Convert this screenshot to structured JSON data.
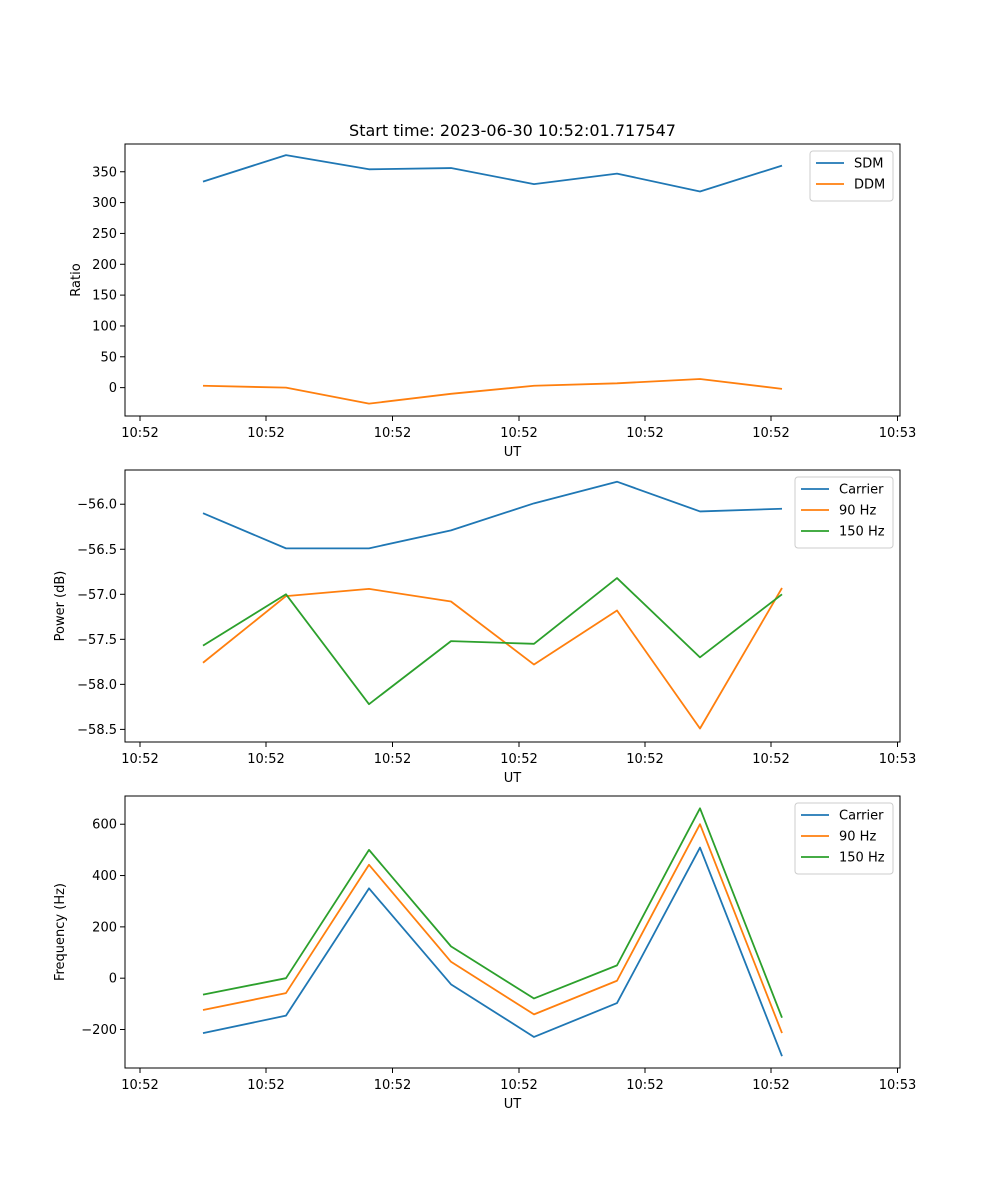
{
  "figure": {
    "title": "Start time: 2023-06-30 10:52:01.717547"
  },
  "chart_data": [
    {
      "type": "line",
      "title": "Start time: 2023-06-30 10:52:01.717547",
      "xlabel": "UT",
      "ylabel": "Ratio",
      "x_tick_labels": [
        "10:52",
        "10:52",
        "10:52",
        "10:52",
        "10:52",
        "10:52",
        "10:52",
        "10:53"
      ],
      "y_ticks": [
        0,
        50,
        100,
        150,
        200,
        250,
        300,
        350
      ],
      "y_tick_labels": [
        "0",
        "50",
        "100",
        "150",
        "200",
        "250",
        "300",
        "350"
      ],
      "ylim": [
        -46,
        395
      ],
      "grid": false,
      "legend_position": "top-right",
      "series": [
        {
          "name": "SDM",
          "color": "#1f77b4",
          "values": [
            334,
            377,
            354,
            356,
            330,
            347,
            318,
            360
          ]
        },
        {
          "name": "DDM",
          "color": "#ff7f0e",
          "values": [
            3,
            0,
            -26,
            -10,
            3,
            7,
            14,
            -2
          ]
        }
      ]
    },
    {
      "type": "line",
      "title": "",
      "xlabel": "UT",
      "ylabel": "Power (dB)",
      "x_tick_labels": [
        "10:52",
        "10:52",
        "10:52",
        "10:52",
        "10:52",
        "10:52",
        "10:52",
        "10:53"
      ],
      "y_ticks": [
        -58.5,
        -58.0,
        -57.5,
        -57.0,
        -56.5,
        -56.0
      ],
      "y_tick_labels": [
        "−58.5",
        "−58.0",
        "−57.5",
        "−57.0",
        "−56.5",
        "−56.0"
      ],
      "ylim": [
        -58.64,
        -55.62
      ],
      "grid": false,
      "legend_position": "top-right",
      "series": [
        {
          "name": "Carrier",
          "color": "#1f77b4",
          "values": [
            -56.1,
            -56.49,
            -56.49,
            -56.29,
            -55.99,
            -55.75,
            -56.08,
            -56.05
          ]
        },
        {
          "name": "90 Hz",
          "color": "#ff7f0e",
          "values": [
            -57.76,
            -57.02,
            -56.94,
            -57.08,
            -57.78,
            -57.18,
            -58.49,
            -56.93
          ]
        },
        {
          "name": "150 Hz",
          "color": "#2ca02c",
          "values": [
            -57.57,
            -57.0,
            -58.22,
            -57.52,
            -57.55,
            -56.82,
            -57.7,
            -57.0
          ]
        }
      ]
    },
    {
      "type": "line",
      "title": "",
      "xlabel": "UT",
      "ylabel": "Frequency (Hz)",
      "x_tick_labels": [
        "10:52",
        "10:52",
        "10:52",
        "10:52",
        "10:52",
        "10:52",
        "10:52",
        "10:53"
      ],
      "y_ticks": [
        -200,
        0,
        200,
        400,
        600
      ],
      "y_tick_labels": [
        "−200",
        "0",
        "200",
        "400",
        "600"
      ],
      "ylim": [
        -350,
        710
      ],
      "grid": false,
      "legend_position": "top-right",
      "series": [
        {
          "name": "Carrier",
          "color": "#1f77b4",
          "values": [
            -214,
            -146,
            350,
            -24,
            -229,
            -97,
            509,
            -304
          ]
        },
        {
          "name": "90 Hz",
          "color": "#ff7f0e",
          "values": [
            -124,
            -58,
            442,
            64,
            -141,
            -10,
            600,
            -214
          ]
        },
        {
          "name": "150 Hz",
          "color": "#2ca02c",
          "values": [
            -64,
            0,
            500,
            124,
            -79,
            50,
            662,
            -154
          ]
        }
      ]
    }
  ]
}
